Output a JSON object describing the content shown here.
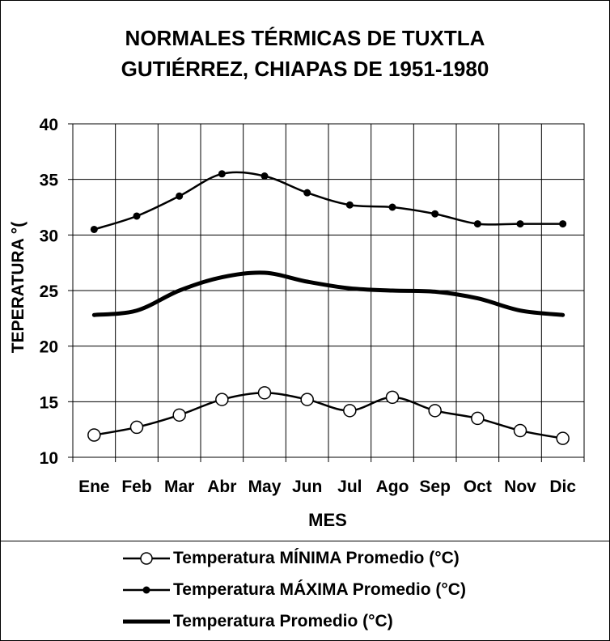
{
  "chart_data": {
    "type": "line",
    "title_lines": [
      "NORMALES TÉRMICAS DE TUXTLA",
      "GUTIÉRREZ, CHIAPAS DE 1951-1980"
    ],
    "xlabel": "MES",
    "ylabel": "TEPERATURA °(",
    "categories": [
      "Ene",
      "Feb",
      "Mar",
      "Abr",
      "May",
      "Jun",
      "Jul",
      "Ago",
      "Sep",
      "Oct",
      "Nov",
      "Dic"
    ],
    "ylim": [
      10,
      40
    ],
    "yticks": [
      10,
      15,
      20,
      25,
      30,
      35,
      40
    ],
    "grid": true,
    "legend_position": "bottom",
    "series": [
      {
        "name": "Temperatura MÍNIMA Promedio (°C)",
        "marker": "open-circle",
        "values": [
          12.0,
          12.7,
          13.8,
          15.2,
          15.8,
          15.2,
          14.2,
          15.4,
          14.2,
          13.5,
          12.4,
          11.7
        ]
      },
      {
        "name": "Temperatura MÁXIMA Promedio (°C)",
        "marker": "filled-dot",
        "values": [
          30.5,
          31.7,
          33.5,
          35.5,
          35.3,
          33.8,
          32.7,
          32.5,
          31.9,
          31.0,
          31.0,
          31.0
        ]
      },
      {
        "name": "Temperatura Promedio (°C)",
        "marker": "none",
        "values": [
          22.8,
          23.2,
          25.0,
          26.2,
          26.6,
          25.8,
          25.2,
          25.0,
          24.9,
          24.3,
          23.2,
          22.8
        ]
      }
    ]
  }
}
